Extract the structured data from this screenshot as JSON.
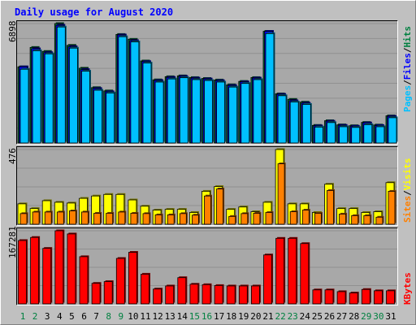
{
  "title": "Daily usage for August 2020",
  "chart_data": [
    {
      "type": "bar",
      "name_label": "hits-files-pages",
      "max_label": "6898",
      "ylim": [
        0,
        6898
      ],
      "categories": [
        "1",
        "2",
        "3",
        "4",
        "5",
        "6",
        "7",
        "8",
        "9",
        "10",
        "11",
        "12",
        "13",
        "14",
        "15",
        "16",
        "17",
        "18",
        "19",
        "20",
        "21",
        "22",
        "23",
        "24",
        "25",
        "26",
        "27",
        "28",
        "29",
        "30",
        "31"
      ],
      "weekend_days": [
        "1",
        "2",
        "8",
        "9",
        "15",
        "16",
        "22",
        "23",
        "29",
        "30"
      ],
      "series": [
        {
          "name": "Hits",
          "color": "#008040",
          "values": [
            4400,
            5520,
            5290,
            6898,
            5640,
            4320,
            3200,
            3010,
            6270,
            5990,
            4740,
            3650,
            3830,
            3880,
            3780,
            3730,
            3640,
            3360,
            3560,
            3780,
            6450,
            2840,
            2520,
            2360,
            1020,
            1290,
            1050,
            1000,
            1190,
            1040,
            1570
          ]
        },
        {
          "name": "Files",
          "color": "#0000ff",
          "values": [
            4400,
            5440,
            5220,
            6800,
            5560,
            4240,
            3150,
            2960,
            6240,
            5910,
            4700,
            3610,
            3790,
            3850,
            3750,
            3700,
            3600,
            3320,
            3530,
            3750,
            6450,
            2810,
            2440,
            2300,
            990,
            1260,
            1020,
            970,
            1160,
            1010,
            1540
          ]
        },
        {
          "name": "Pages",
          "color": "#00c0ff",
          "values": [
            4260,
            5330,
            5150,
            6700,
            5480,
            4150,
            3050,
            2890,
            6140,
            5840,
            4620,
            3520,
            3700,
            3770,
            3660,
            3610,
            3520,
            3230,
            3440,
            3660,
            6320,
            2730,
            2370,
            2230,
            920,
            1180,
            940,
            900,
            1060,
            940,
            1460
          ]
        }
      ]
    },
    {
      "type": "bar",
      "name_label": "visits-sites",
      "max_label": "476",
      "ylim": [
        0,
        476
      ],
      "categories": [
        "1",
        "2",
        "3",
        "4",
        "5",
        "6",
        "7",
        "8",
        "9",
        "10",
        "11",
        "12",
        "13",
        "14",
        "15",
        "16",
        "17",
        "18",
        "19",
        "20",
        "21",
        "22",
        "23",
        "24",
        "25",
        "26",
        "27",
        "28",
        "29",
        "30",
        "31"
      ],
      "series": [
        {
          "name": "Visits",
          "color": "#ffff00",
          "values": [
            130,
            100,
            150,
            140,
            135,
            165,
            180,
            190,
            190,
            155,
            115,
            90,
            95,
            95,
            75,
            210,
            240,
            95,
            110,
            80,
            140,
            476,
            130,
            130,
            75,
            255,
            100,
            100,
            75,
            80,
            265
          ]
        },
        {
          "name": "Sites",
          "color": "#ff8000",
          "values": [
            68,
            78,
            78,
            78,
            85,
            78,
            70,
            70,
            78,
            70,
            68,
            60,
            60,
            68,
            58,
            180,
            225,
            50,
            68,
            70,
            75,
            385,
            80,
            90,
            70,
            215,
            65,
            55,
            55,
            45,
            210
          ]
        }
      ]
    },
    {
      "type": "bar",
      "name_label": "kbytes",
      "max_label": "167281",
      "ylim": [
        0,
        167281
      ],
      "categories": [
        "1",
        "2",
        "3",
        "4",
        "5",
        "6",
        "7",
        "8",
        "9",
        "10",
        "11",
        "12",
        "13",
        "14",
        "15",
        "16",
        "17",
        "18",
        "19",
        "20",
        "21",
        "22",
        "23",
        "24",
        "25",
        "26",
        "27",
        "28",
        "29",
        "30",
        "31"
      ],
      "series": [
        {
          "name": "KBytes",
          "color": "#ff0000",
          "values": [
            145000,
            152000,
            127000,
            167281,
            160000,
            108000,
            47000,
            51000,
            104000,
            118000,
            68000,
            34000,
            41000,
            60000,
            45000,
            44000,
            42000,
            41000,
            41000,
            41000,
            112000,
            150000,
            150000,
            138000,
            32000,
            32000,
            28000,
            25000,
            33000,
            30000,
            30000
          ]
        }
      ]
    }
  ]
}
